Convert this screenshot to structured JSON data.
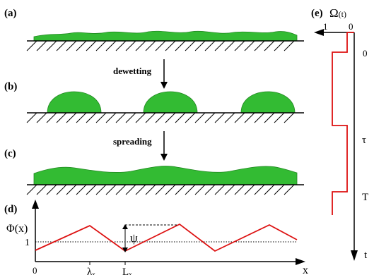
{
  "panels": {
    "a": {
      "label": "(a)"
    },
    "b": {
      "label": "(b)"
    },
    "c": {
      "label": "(c)"
    },
    "d": {
      "label": "(d)"
    },
    "e": {
      "label": "(e)"
    }
  },
  "process": {
    "dewetting": "dewetting",
    "spreading": "spreading"
  },
  "plot_d": {
    "y_axis_label": "Φ(x)",
    "x_axis_label": "x",
    "level_label": "1",
    "origin_label": "0",
    "amplitude_label": "ψ",
    "lambda_label": "λ",
    "lambda_sub": "x",
    "L_label": "L",
    "L_sub": "x"
  },
  "plot_e": {
    "title_main": "Ω",
    "title_arg": "(t)",
    "val_one": "1",
    "val_zero": "0",
    "t_zero": "0",
    "t_tau": "τ",
    "t_T": "T",
    "time_label": "t"
  },
  "colors": {
    "film": "#33bb33",
    "film_edge": "#228822",
    "signal": "#dd1111"
  }
}
